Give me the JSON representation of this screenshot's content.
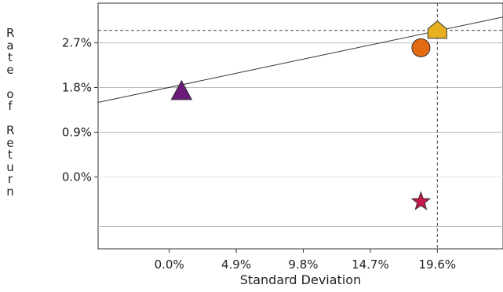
{
  "chart_data": {
    "type": "scatter",
    "xlabel": "Standard Deviation",
    "ylabel": "Rate of Return",
    "xlim": [
      -5.2,
      24.4
    ],
    "ylim": [
      -1.45,
      3.5
    ],
    "x_ticks": [
      {
        "value": 0.0,
        "label": "0.0%"
      },
      {
        "value": 4.9,
        "label": "4.9%"
      },
      {
        "value": 9.8,
        "label": "9.8%"
      },
      {
        "value": 14.7,
        "label": "14.7%"
      },
      {
        "value": 19.6,
        "label": "19.6%"
      }
    ],
    "y_ticks": [
      {
        "value": 0.0,
        "label": "0.0%"
      },
      {
        "value": 0.9,
        "label": "0.9%"
      },
      {
        "value": 1.8,
        "label": "1.8%"
      },
      {
        "value": 2.7,
        "label": "2.7%"
      }
    ],
    "grid": "horizontal",
    "points": [
      {
        "x": 0.9,
        "y": 1.7,
        "marker": "triangle",
        "color": "#6a1a78"
      },
      {
        "x": 19.6,
        "y": 2.95,
        "marker": "pentagon",
        "color": "#e6b020"
      },
      {
        "x": 18.4,
        "y": 2.6,
        "marker": "circle",
        "color": "#e26b12"
      },
      {
        "x": 18.4,
        "y": -0.5,
        "marker": "star",
        "color": "#c8184a"
      }
    ],
    "line": {
      "x": [
        -5.2,
        24.4
      ],
      "y": [
        1.5,
        3.22
      ],
      "color": "#333333"
    },
    "reference_lines": {
      "x": 19.6,
      "y": 2.95,
      "style": "dashed"
    }
  }
}
